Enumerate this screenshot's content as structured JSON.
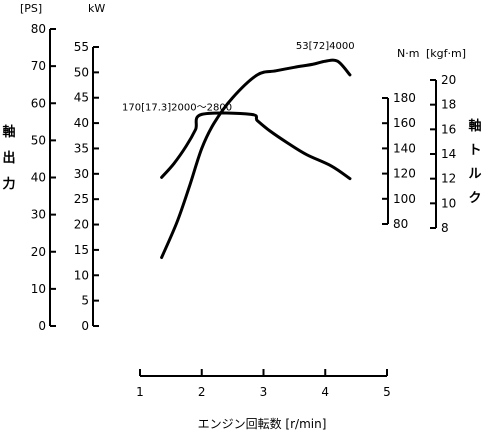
{
  "chart_data": {
    "type": "line",
    "xlabel": "エンジン回転数 [r/min]",
    "x_axis": {
      "range": [
        1,
        5
      ],
      "ticks": [
        1,
        2,
        3,
        4,
        5
      ],
      "tick_labels": [
        "1",
        "2",
        "3",
        "4",
        "5"
      ]
    },
    "left_axes": {
      "title": [
        "軸",
        "出",
        "力"
      ],
      "ps": {
        "unit": "[PS]",
        "range": [
          0,
          80
        ],
        "ticks": [
          0,
          10,
          20,
          30,
          40,
          50,
          60,
          70,
          80
        ],
        "tick_labels": [
          "0",
          "10",
          "20",
          "30",
          "40",
          "50",
          "60",
          "70",
          "80"
        ]
      },
      "kw": {
        "unit": "kW",
        "range": [
          0,
          55
        ],
        "ticks": [
          0,
          5,
          10,
          15,
          20,
          25,
          30,
          35,
          40,
          45,
          50,
          55
        ],
        "tick_labels": [
          "0",
          "5",
          "10",
          "15",
          "20",
          "25",
          "30",
          "35",
          "40",
          "45",
          "50",
          "55"
        ]
      }
    },
    "right_axes": {
      "title": [
        "軸",
        "ト",
        "ル",
        "ク"
      ],
      "nm": {
        "unit": "N·m",
        "range": [
          80,
          180
        ],
        "ticks": [
          80,
          100,
          120,
          140,
          160,
          180
        ],
        "tick_labels": [
          "80",
          "100",
          "120",
          "140",
          "160",
          "180"
        ]
      },
      "kgfm": {
        "unit": "[kgf·m]",
        "range": [
          8,
          20
        ],
        "ticks": [
          8,
          10,
          12,
          14,
          16,
          18,
          20
        ],
        "tick_labels": [
          "8",
          "10",
          "12",
          "14",
          "16",
          "18",
          "20"
        ]
      }
    },
    "series": [
      {
        "axis": "kW",
        "x": [
          1.35,
          1.6,
          1.8,
          2.0,
          2.2,
          2.5,
          2.9,
          3.2,
          3.5,
          3.8,
          4.0,
          4.2,
          4.4
        ],
        "y": [
          13.5,
          20.5,
          27.5,
          35,
          40,
          45,
          49.5,
          50.3,
          51,
          51.6,
          52.2,
          52.2,
          49.5
        ]
      },
      {
        "axis": "N·m",
        "x": [
          1.35,
          1.55,
          1.75,
          1.9,
          2.0,
          2.8,
          2.9,
          3.1,
          3.4,
          3.7,
          4.1,
          4.4
        ],
        "y": [
          117,
          128,
          142,
          155,
          167,
          167,
          162,
          154,
          144,
          135,
          126,
          116
        ]
      }
    ],
    "annotations": [
      {
        "text": "53[72]4000",
        "x": 4.0,
        "y": 54.6,
        "axis": "kW"
      },
      {
        "text": "170[17.3]2000〜2800",
        "x": 1.6,
        "y": 42.5,
        "axis": "kW"
      }
    ]
  }
}
